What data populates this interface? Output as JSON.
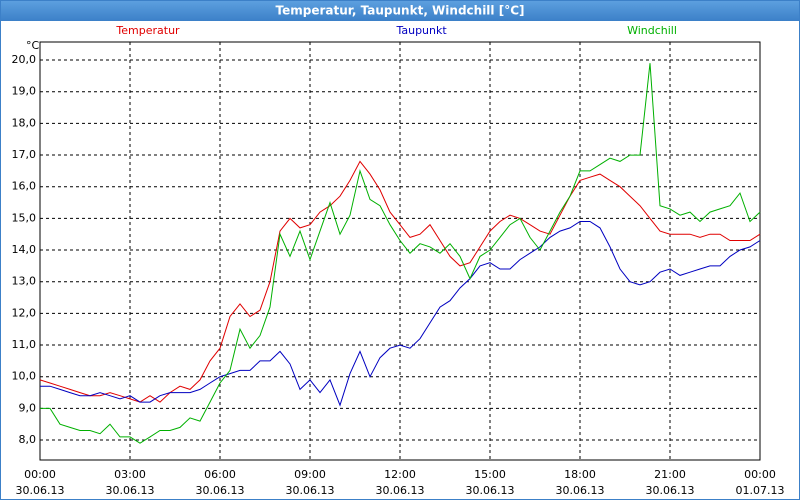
{
  "window_title": "Temperatur, Taupunkt, Windchill [°C]",
  "chart_data": {
    "type": "line",
    "y_unit": "°C",
    "x": [
      0,
      20,
      40,
      60,
      80,
      100,
      120,
      140,
      160,
      180,
      200,
      220,
      240,
      260,
      280,
      300,
      320,
      340,
      360,
      380,
      400,
      420,
      440,
      460,
      480,
      500,
      520,
      540,
      560,
      580,
      600,
      620,
      640,
      660,
      680,
      700,
      720,
      740,
      760,
      780,
      800,
      820,
      840,
      860,
      880,
      900,
      920,
      940,
      960,
      980,
      1000,
      1020,
      1040,
      1060,
      1080,
      1100,
      1120,
      1140,
      1160,
      1180,
      1200,
      1220,
      1240,
      1260,
      1280,
      1300,
      1320,
      1340,
      1360,
      1380,
      1400,
      1420,
      1440
    ],
    "series": [
      {
        "name": "Temperatur",
        "color": "#e00000",
        "values": [
          9.9,
          9.8,
          9.7,
          9.6,
          9.5,
          9.4,
          9.4,
          9.5,
          9.4,
          9.3,
          9.2,
          9.4,
          9.2,
          9.5,
          9.7,
          9.6,
          9.9,
          10.5,
          10.9,
          11.9,
          12.3,
          11.9,
          12.1,
          13.0,
          14.6,
          15.0,
          14.7,
          14.8,
          15.2,
          15.4,
          15.7,
          16.2,
          16.8,
          16.4,
          15.9,
          15.2,
          14.8,
          14.4,
          14.5,
          14.8,
          14.3,
          13.8,
          13.5,
          13.6,
          14.1,
          14.6,
          14.9,
          15.1,
          15.0,
          14.8,
          14.6,
          14.5,
          15.1,
          15.7,
          16.2,
          16.3,
          16.4,
          16.2,
          16.0,
          15.7,
          15.4,
          15.0,
          14.6,
          14.5,
          14.5,
          14.5,
          14.4,
          14.5,
          14.5,
          14.3,
          14.3,
          14.3,
          14.5
        ]
      },
      {
        "name": "Taupunkt",
        "color": "#0000c0",
        "values": [
          9.7,
          9.7,
          9.6,
          9.5,
          9.4,
          9.4,
          9.5,
          9.4,
          9.3,
          9.4,
          9.2,
          9.2,
          9.4,
          9.5,
          9.5,
          9.5,
          9.6,
          9.8,
          10.0,
          10.1,
          10.2,
          10.2,
          10.5,
          10.5,
          10.8,
          10.4,
          9.6,
          9.9,
          9.5,
          9.9,
          9.1,
          10.1,
          10.8,
          10.0,
          10.6,
          10.9,
          11.0,
          10.9,
          11.2,
          11.7,
          12.2,
          12.4,
          12.8,
          13.1,
          13.5,
          13.6,
          13.4,
          13.4,
          13.7,
          13.9,
          14.1,
          14.4,
          14.6,
          14.7,
          14.9,
          14.9,
          14.7,
          14.1,
          13.4,
          13.0,
          12.9,
          13.0,
          13.3,
          13.4,
          13.2,
          13.3,
          13.4,
          13.5,
          13.5,
          13.8,
          14.0,
          14.1,
          14.3
        ]
      },
      {
        "name": "Windchill",
        "color": "#00b000",
        "values": [
          9.0,
          9.0,
          8.5,
          8.4,
          8.3,
          8.3,
          8.2,
          8.5,
          8.1,
          8.1,
          7.9,
          8.1,
          8.3,
          8.3,
          8.4,
          8.7,
          8.6,
          9.2,
          9.8,
          10.2,
          11.5,
          10.9,
          11.3,
          12.2,
          14.5,
          13.8,
          14.6,
          13.7,
          14.6,
          15.5,
          14.5,
          15.1,
          16.5,
          15.6,
          15.4,
          14.8,
          14.3,
          13.9,
          14.2,
          14.1,
          13.9,
          14.2,
          13.8,
          13.1,
          13.8,
          14.0,
          14.4,
          14.8,
          15.0,
          14.4,
          14.0,
          14.6,
          15.2,
          15.7,
          16.5,
          16.5,
          16.7,
          16.9,
          16.8,
          17.0,
          17.0,
          19.9,
          15.4,
          15.3,
          15.1,
          15.2,
          14.9,
          15.2,
          15.3,
          15.4,
          15.8,
          14.9,
          15.2
        ]
      }
    ],
    "xlim": [
      0,
      1440
    ],
    "xticks": [
      {
        "value": 0,
        "label": "00:00",
        "date": "30.06.13"
      },
      {
        "value": 180,
        "label": "03:00",
        "date": "30.06.13"
      },
      {
        "value": 360,
        "label": "06:00",
        "date": "30.06.13"
      },
      {
        "value": 540,
        "label": "09:00",
        "date": "30.06.13"
      },
      {
        "value": 720,
        "label": "12:00",
        "date": "30.06.13"
      },
      {
        "value": 900,
        "label": "15:00",
        "date": "30.06.13"
      },
      {
        "value": 1080,
        "label": "18:00",
        "date": "30.06.13"
      },
      {
        "value": 1260,
        "label": "21:00",
        "date": "30.06.13"
      },
      {
        "value": 1440,
        "label": "00:00",
        "date": "01.07.13"
      }
    ],
    "ylim": [
      7.37,
      20.57
    ],
    "yticks": [
      {
        "value": 8,
        "label": "8,0"
      },
      {
        "value": 9,
        "label": "9,0"
      },
      {
        "value": 10,
        "label": "10,0"
      },
      {
        "value": 11,
        "label": "11,0"
      },
      {
        "value": 12,
        "label": "12,0"
      },
      {
        "value": 13,
        "label": "13,0"
      },
      {
        "value": 14,
        "label": "14,0"
      },
      {
        "value": 15,
        "label": "15,0"
      },
      {
        "value": 16,
        "label": "16,0"
      },
      {
        "value": 17,
        "label": "17,0"
      },
      {
        "value": 18,
        "label": "18,0"
      },
      {
        "value": 19,
        "label": "19,0"
      },
      {
        "value": 20,
        "label": "20,0"
      }
    ],
    "grid": true
  }
}
